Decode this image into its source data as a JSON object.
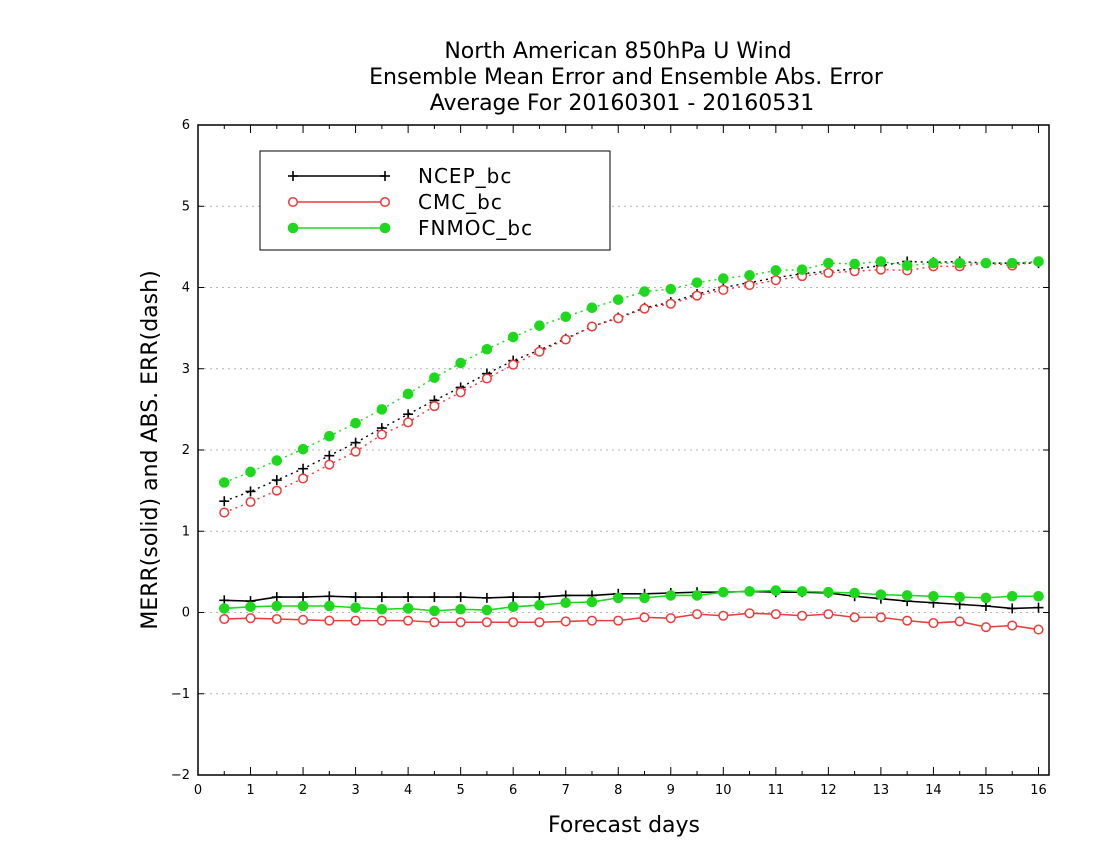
{
  "chart_data": {
    "type": "line",
    "title": [
      "North American 850hPa U Wind",
      "Ensemble Mean Error and Ensemble Abs. Error",
      "Average For 20160301 - 20160531"
    ],
    "xlabel": "Forecast days",
    "ylabel": "MERR(solid) and ABS. ERR(dash)",
    "xlim": [
      0,
      16.2
    ],
    "ylim": [
      -2,
      6
    ],
    "x_ticks": [
      "0",
      "1",
      "2",
      "3",
      "4",
      "5",
      "6",
      "7",
      "8",
      "9",
      "10",
      "11",
      "12",
      "13",
      "14",
      "15",
      "16"
    ],
    "y_ticks": [
      "−2",
      "−1",
      "0",
      "1",
      "2",
      "3",
      "4",
      "5",
      "6"
    ],
    "grid": "horizontal-dotted",
    "legend": {
      "position": "top-left"
    },
    "x": [
      0.5,
      1,
      1.5,
      2,
      2.5,
      3,
      3.5,
      4,
      4.5,
      5,
      5.5,
      6,
      6.5,
      7,
      7.5,
      8,
      8.5,
      9,
      9.5,
      10,
      10.5,
      11,
      11.5,
      12,
      12.5,
      13,
      13.5,
      14,
      14.5,
      15,
      15.5,
      16
    ],
    "series": [
      {
        "name": "NCEP_bc",
        "color": "#000000",
        "marker": "plus",
        "merr": [
          0.15,
          0.14,
          0.19,
          0.19,
          0.2,
          0.19,
          0.19,
          0.19,
          0.19,
          0.19,
          0.18,
          0.19,
          0.19,
          0.21,
          0.21,
          0.23,
          0.23,
          0.24,
          0.25,
          0.25,
          0.26,
          0.25,
          0.25,
          0.24,
          0.2,
          0.17,
          0.14,
          0.12,
          0.1,
          0.08,
          0.05,
          0.06
        ],
        "abs_err": [
          1.37,
          1.49,
          1.63,
          1.77,
          1.93,
          2.09,
          2.27,
          2.44,
          2.61,
          2.77,
          2.94,
          3.1,
          3.23,
          3.37,
          3.52,
          3.63,
          3.75,
          3.82,
          3.92,
          4.0,
          4.06,
          4.12,
          4.17,
          4.2,
          4.23,
          4.27,
          4.32,
          4.31,
          4.32,
          4.3,
          4.3,
          4.3
        ]
      },
      {
        "name": "CMC_bc",
        "color": "#ee3b3b",
        "marker": "open-circle",
        "merr": [
          -0.08,
          -0.07,
          -0.08,
          -0.09,
          -0.1,
          -0.1,
          -0.1,
          -0.1,
          -0.12,
          -0.12,
          -0.12,
          -0.12,
          -0.12,
          -0.11,
          -0.1,
          -0.1,
          -0.06,
          -0.07,
          -0.02,
          -0.04,
          -0.01,
          -0.02,
          -0.04,
          -0.02,
          -0.06,
          -0.06,
          -0.1,
          -0.13,
          -0.11,
          -0.18,
          -0.16,
          -0.21
        ],
        "abs_err": [
          1.23,
          1.36,
          1.5,
          1.65,
          1.82,
          1.98,
          2.19,
          2.34,
          2.54,
          2.71,
          2.88,
          3.05,
          3.21,
          3.36,
          3.52,
          3.62,
          3.74,
          3.8,
          3.9,
          3.97,
          4.03,
          4.09,
          4.14,
          4.18,
          4.2,
          4.22,
          4.21,
          4.26,
          4.26,
          4.3,
          4.27,
          4.32
        ]
      },
      {
        "name": "FNMOC_bc",
        "color": "#1ed81e",
        "marker": "filled-circle",
        "merr": [
          0.05,
          0.07,
          0.08,
          0.08,
          0.08,
          0.06,
          0.04,
          0.05,
          0.02,
          0.04,
          0.03,
          0.07,
          0.09,
          0.12,
          0.13,
          0.18,
          0.18,
          0.21,
          0.21,
          0.25,
          0.26,
          0.27,
          0.26,
          0.25,
          0.24,
          0.22,
          0.21,
          0.2,
          0.19,
          0.18,
          0.2,
          0.2
        ],
        "abs_err": [
          1.6,
          1.73,
          1.87,
          2.01,
          2.17,
          2.33,
          2.5,
          2.69,
          2.89,
          3.07,
          3.24,
          3.39,
          3.53,
          3.64,
          3.75,
          3.85,
          3.95,
          3.98,
          4.06,
          4.11,
          4.15,
          4.21,
          4.22,
          4.3,
          4.29,
          4.32,
          4.27,
          4.3,
          4.3,
          4.3,
          4.3,
          4.32
        ]
      }
    ]
  }
}
